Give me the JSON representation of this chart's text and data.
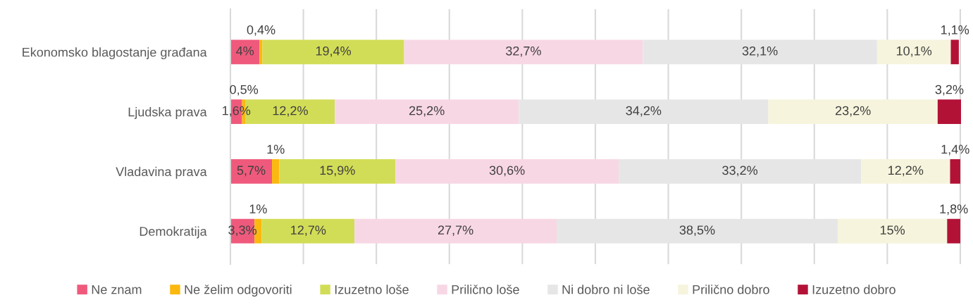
{
  "chart_data": {
    "type": "bar",
    "orientation": "horizontal",
    "stacked": true,
    "categories": [
      "Ekonomsko blagostanje građana",
      "Ljudska prava",
      "Vladavina prava",
      "Demokratija"
    ],
    "xlim": [
      0,
      100.1
    ],
    "xticks": [
      {
        "value": 0,
        "label": null
      },
      {
        "value": 10,
        "label": null
      },
      {
        "value": 20,
        "label": null
      },
      {
        "value": 30,
        "label": null
      },
      {
        "value": 40,
        "label": null
      },
      {
        "value": 50,
        "label": null
      },
      {
        "value": 60,
        "label": null
      },
      {
        "value": 70,
        "label": null
      },
      {
        "value": 80,
        "label": null
      },
      {
        "value": 90,
        "label": null
      },
      {
        "value": 100,
        "label": null
      }
    ],
    "tick_labels": "y",
    "grid": "x",
    "legend": "bottom",
    "series": [
      {
        "name": "Ne znam",
        "color": "#ef5a7c",
        "values": [
          4,
          1.6,
          5.7,
          3.3
        ],
        "value_labels": [
          "4%",
          "1,6%",
          "5,7%",
          "3,3%"
        ]
      },
      {
        "name": "Ne želim odgovoriti",
        "color": "#fbb80f",
        "values": [
          0.4,
          0.5,
          1,
          1
        ],
        "value_labels": [
          "0,4%",
          "0,5%",
          "1%",
          "1%"
        ]
      },
      {
        "name": "Izuzetno loše",
        "color": "#d2dd57",
        "values": [
          19.4,
          12.2,
          15.9,
          12.7
        ],
        "value_labels": [
          "19,4%",
          "12,2%",
          "15,9%",
          "12,7%"
        ]
      },
      {
        "name": "Prilično loše",
        "color": "#f8d7e5",
        "values": [
          32.7,
          25.2,
          30.6,
          27.7
        ],
        "value_labels": [
          "32,7%",
          "25,2%",
          "30,6%",
          "27,7%"
        ]
      },
      {
        "name": "Ni dobro ni loše",
        "color": "#e6e6e6",
        "values": [
          32.1,
          34.2,
          33.2,
          38.5
        ],
        "value_labels": [
          "32,1%",
          "34,2%",
          "33,2%",
          "38,5%"
        ]
      },
      {
        "name": "Prilično dobro",
        "color": "#f6f4dc",
        "values": [
          10.1,
          23.2,
          12.2,
          15
        ],
        "value_labels": [
          "10,1%",
          "23,2%",
          "12,2%",
          "15%"
        ]
      },
      {
        "name": "Izuzetno dobro",
        "color": "#b31237",
        "values": [
          1.1,
          3.2,
          1.4,
          1.8
        ],
        "value_labels": [
          "1,1%",
          "3,2%",
          "1,4%",
          "1,8%"
        ]
      }
    ]
  }
}
